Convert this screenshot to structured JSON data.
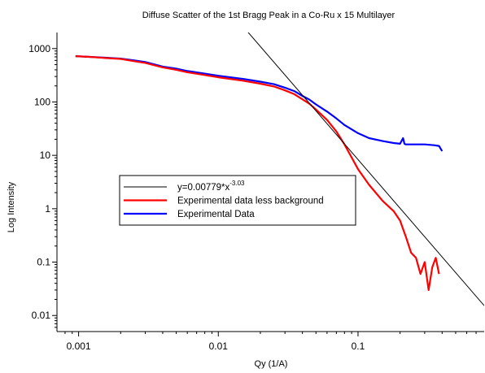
{
  "chart_data": {
    "type": "line",
    "title": "Diffuse Scatter of the 1st Bragg Peak in a Co-Ru x 15 Multilayer",
    "xlabel": "Qy (1/A)",
    "ylabel": "Log Intensity",
    "xscale": "log",
    "yscale": "log",
    "xlim": [
      0.0007,
      0.8
    ],
    "ylim": [
      0.005,
      2000
    ],
    "xticks": [
      {
        "value": 0.001,
        "label": "0.001"
      },
      {
        "value": 0.01,
        "label": "0.01"
      },
      {
        "value": 0.1,
        "label": "0.1"
      }
    ],
    "yticks": [
      {
        "value": 1000,
        "label": "1000"
      },
      {
        "value": 100,
        "label": "100"
      },
      {
        "value": 10,
        "label": "10"
      },
      {
        "value": 1,
        "label": "1"
      },
      {
        "value": 0.1,
        "label": "0.1"
      },
      {
        "value": 0.01,
        "label": "0.01"
      }
    ],
    "grid": false,
    "legend_position": "center-left",
    "legend_order": [
      "fit",
      "bg",
      "raw"
    ],
    "series": [
      {
        "id": "raw",
        "name": "Experimental Data",
        "color": "#0000ff",
        "x": [
          0.00095,
          0.0012,
          0.0015,
          0.002,
          0.0025,
          0.003,
          0.004,
          0.005,
          0.006,
          0.008,
          0.01,
          0.015,
          0.02,
          0.025,
          0.03,
          0.035,
          0.04,
          0.045,
          0.05,
          0.06,
          0.07,
          0.08,
          0.1,
          0.12,
          0.15,
          0.18,
          0.2,
          0.21,
          0.215,
          0.22,
          0.25,
          0.3,
          0.35,
          0.38,
          0.4
        ],
        "y": [
          720,
          700,
          680,
          650,
          600,
          560,
          460,
          420,
          380,
          340,
          310,
          270,
          240,
          215,
          185,
          160,
          130,
          110,
          90,
          66,
          49,
          37,
          26,
          21,
          18.5,
          17,
          16.5,
          21,
          16.5,
          16,
          16,
          16,
          15.5,
          15,
          12
        ]
      },
      {
        "id": "bg",
        "name": "Experimental data less background",
        "color": "#ff0000",
        "x": [
          0.00095,
          0.0012,
          0.0015,
          0.002,
          0.0025,
          0.003,
          0.004,
          0.005,
          0.006,
          0.008,
          0.01,
          0.015,
          0.02,
          0.025,
          0.03,
          0.035,
          0.04,
          0.045,
          0.05,
          0.06,
          0.07,
          0.08,
          0.1,
          0.12,
          0.15,
          0.18,
          0.2,
          0.22,
          0.24,
          0.26,
          0.28,
          0.3,
          0.32,
          0.34,
          0.36,
          0.38
        ],
        "y": [
          720,
          700,
          670,
          640,
          580,
          540,
          445,
          400,
          360,
          320,
          290,
          250,
          220,
          195,
          165,
          140,
          112,
          92,
          72,
          46,
          28,
          16,
          5.5,
          2.8,
          1.4,
          0.9,
          0.6,
          0.3,
          0.15,
          0.12,
          0.06,
          0.1,
          0.03,
          0.08,
          0.12,
          0.06
        ]
      },
      {
        "id": "fit",
        "name": "y=0.00779*x",
        "name_superscript": "-3.03",
        "color": "#000000",
        "equation": {
          "coefficient": 0.00779,
          "exponent": -3.03
        },
        "x_range": [
          0.0055,
          0.8
        ]
      }
    ]
  }
}
